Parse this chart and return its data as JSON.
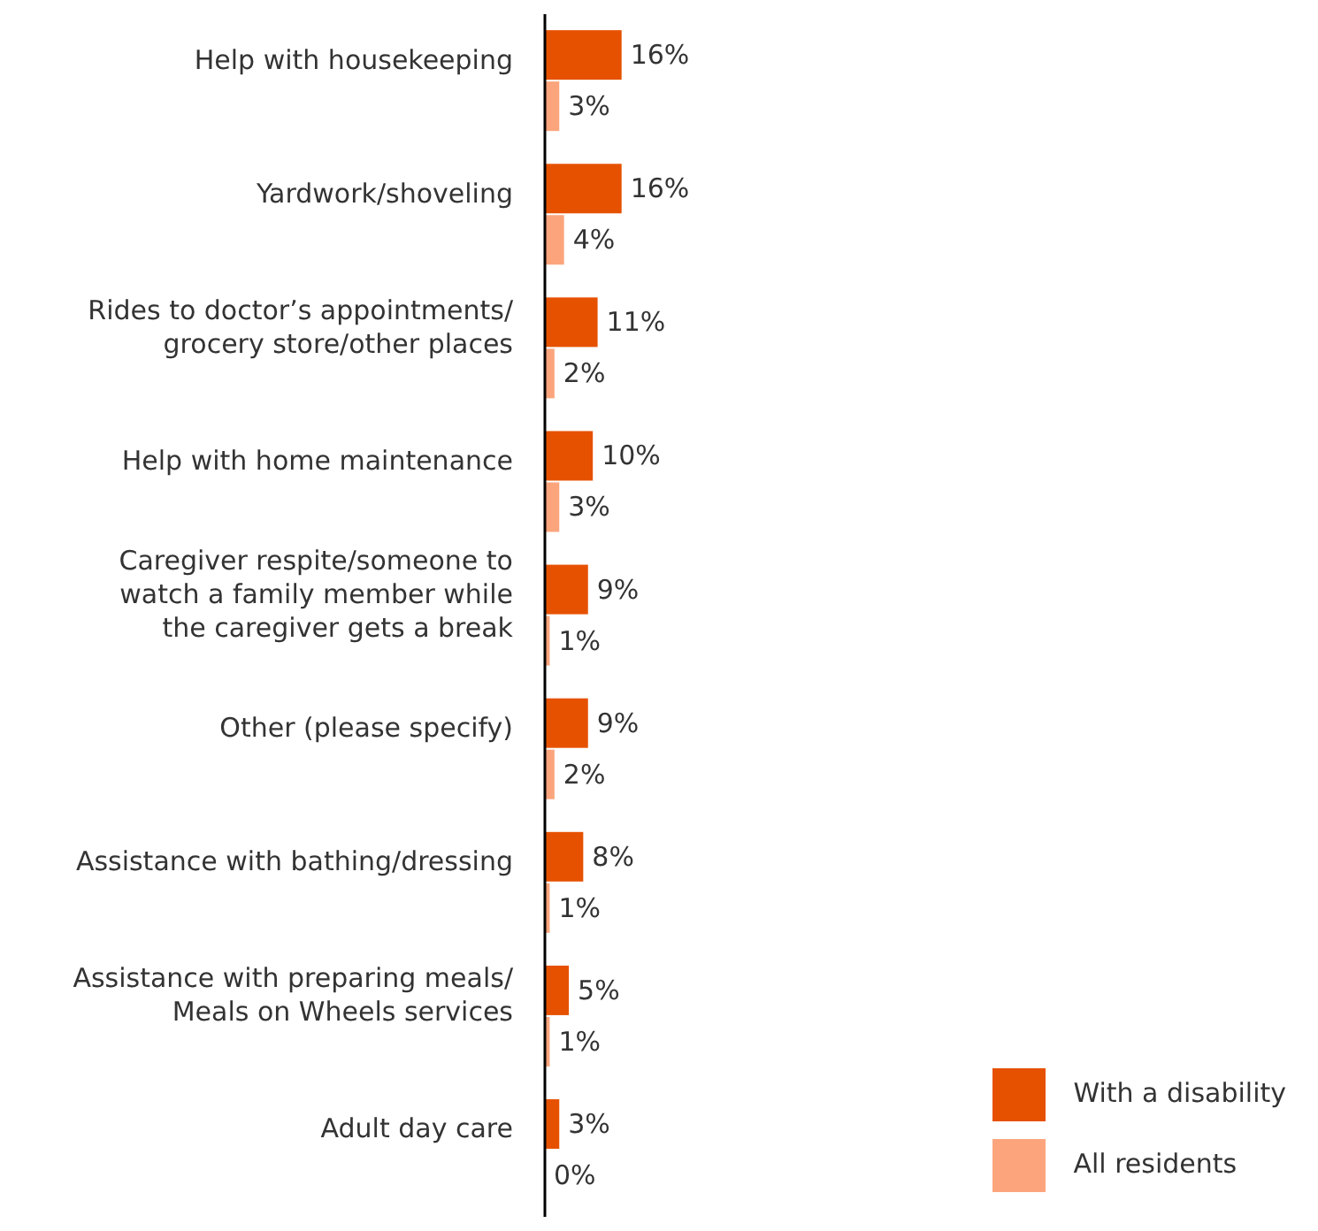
{
  "chart_data": {
    "type": "bar",
    "orientation": "horizontal",
    "legend": "bottom right",
    "categories": [
      "Help with housekeeping",
      "Yardwork/shoveling",
      "Rides to doctor’s appointments/\ngrocery store/other places",
      "Help with home maintenance",
      "Caregiver respite/someone to\nwatch a family member while\nthe caregiver gets a break",
      "Other (please specify)",
      "Assistance with bathing/dressing",
      "Assistance with preparing meals/\nMeals on Wheels services",
      "Adult day care"
    ],
    "series": [
      {
        "name": "With a disability",
        "color": "#e65100",
        "values": [
          16,
          16,
          11,
          10,
          9,
          9,
          8,
          5,
          3
        ],
        "value_labels": [
          "16%",
          "16%",
          "11%",
          "10%",
          "9%",
          "9%",
          "8%",
          "5%",
          "3%"
        ]
      },
      {
        "name": "All residents",
        "color": "#fca57d",
        "values": [
          3,
          4,
          2,
          3,
          1,
          2,
          1,
          1,
          0
        ],
        "value_labels": [
          "3%",
          "4%",
          "2%",
          "3%",
          "1%",
          "2%",
          "1%",
          "1%",
          "0%"
        ]
      }
    ]
  }
}
